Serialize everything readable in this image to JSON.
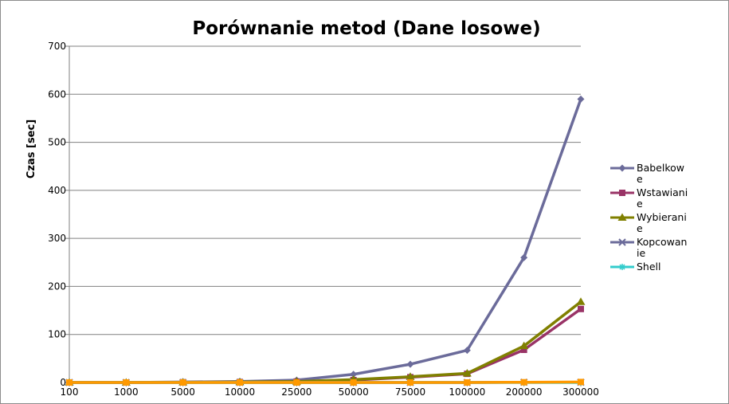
{
  "chart_data": {
    "type": "line",
    "title": "Porównanie metod (Dane losowe)",
    "xlabel": "",
    "ylabel": "Czas [sec]",
    "ylim": [
      0,
      700
    ],
    "yticks": [
      0,
      100,
      200,
      300,
      400,
      500,
      600,
      700
    ],
    "categories": [
      "100",
      "1000",
      "5000",
      "10000",
      "25000",
      "50000",
      "75000",
      "100000",
      "200000",
      "300000"
    ],
    "grid": "horizontal",
    "legend_position": "right",
    "series": [
      {
        "name": "Babelkowe",
        "legend_lines": [
          "Babelkow",
          "e"
        ],
        "color": "#6b6b9a",
        "marker": "diamond",
        "values": [
          0,
          0,
          1,
          2,
          5,
          17,
          38,
          67,
          260,
          590
        ]
      },
      {
        "name": "Wstawianie",
        "legend_lines": [
          "Wstawiani",
          "e"
        ],
        "color": "#993366",
        "marker": "square",
        "values": [
          0,
          0,
          0.5,
          1,
          2,
          5,
          11,
          18,
          68,
          153
        ]
      },
      {
        "name": "Wybieranie",
        "legend_lines": [
          "Wybierani",
          "e"
        ],
        "color": "#808000",
        "marker": "triangle",
        "values": [
          0,
          0,
          0.5,
          1,
          2,
          6,
          12,
          19,
          76,
          168
        ]
      },
      {
        "name": "Kopcowanie",
        "legend_lines": [
          "Kopcowan",
          "ie"
        ],
        "color": "#6b6b9a",
        "marker": "x",
        "values": [
          0,
          0,
          0,
          0,
          0,
          0,
          0,
          0,
          0.5,
          0.5
        ]
      },
      {
        "name": "Shell",
        "legend_lines": [
          "Shell"
        ],
        "color": "#33cccc",
        "marker": "star",
        "values": [
          0,
          0,
          0,
          0,
          0,
          0,
          0,
          0,
          0,
          0
        ]
      },
      {
        "name": "",
        "legend_lines": [],
        "color": "#ff9900",
        "marker": "square",
        "values": [
          0,
          0,
          0,
          0,
          0,
          0,
          0,
          0,
          0.5,
          1
        ]
      }
    ]
  }
}
